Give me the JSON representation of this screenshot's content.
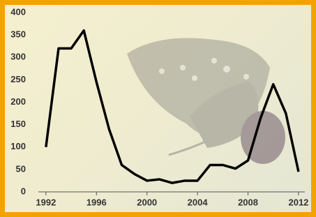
{
  "chart_data": {
    "type": "line",
    "x": [
      1992,
      1993,
      1994,
      1995,
      1996,
      1997,
      1998,
      1999,
      2000,
      2001,
      2002,
      2003,
      2004,
      2005,
      2006,
      2007,
      2008,
      2009,
      2010,
      2011,
      2012
    ],
    "series": [
      {
        "color": "#000000",
        "values": [
          100,
          320,
          320,
          360,
          245,
          140,
          60,
          40,
          25,
          28,
          20,
          25,
          25,
          60,
          60,
          52,
          70,
          165,
          240,
          175,
          45
        ]
      }
    ],
    "xlim": [
      1991.4,
      2012.5
    ],
    "xticks": [
      1992,
      1996,
      2000,
      2004,
      2008,
      2012
    ],
    "ylim": [
      0,
      400
    ],
    "yticks": [
      0,
      50,
      100,
      150,
      200,
      250,
      300,
      350,
      400
    ]
  }
}
